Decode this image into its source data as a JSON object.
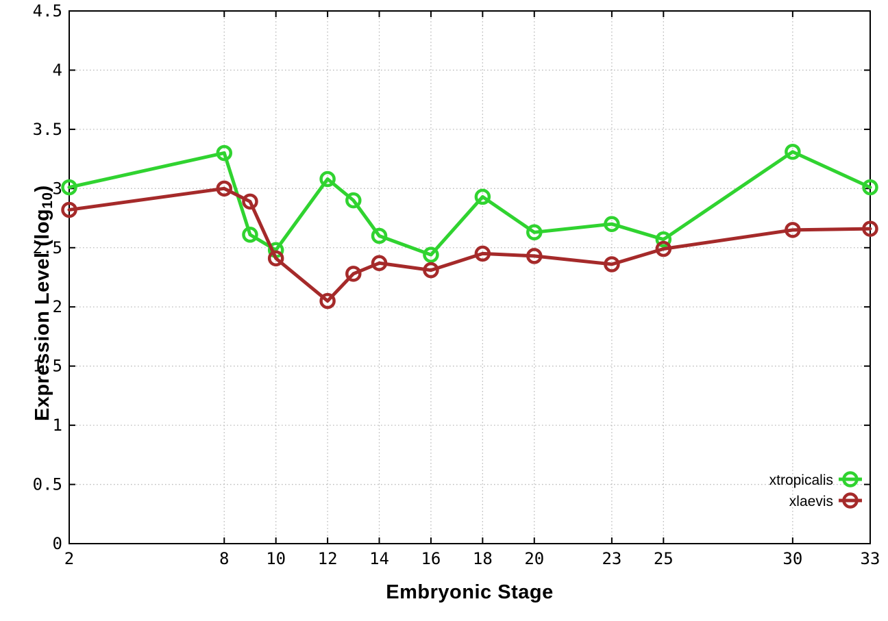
{
  "chart_data": {
    "type": "line",
    "title": "",
    "xlabel": "Embryonic Stage",
    "ylabel": "Expression Level (log10)",
    "ylabel_parts": {
      "prefix": "Expression Level (log",
      "sub": "10",
      "suffix": ")"
    },
    "x": [
      2,
      8,
      9,
      10,
      12,
      13,
      14,
      16,
      18,
      20,
      23,
      25,
      30,
      33
    ],
    "xlim": [
      2,
      33
    ],
    "ylim": [
      0,
      4.5
    ],
    "xtick_values": [
      2,
      8,
      10,
      12,
      14,
      16,
      18,
      20,
      23,
      25,
      30,
      33
    ],
    "xtick_labels": [
      "2",
      "8",
      "10",
      "12",
      "14",
      "16",
      "18",
      "20",
      "23",
      "25",
      "30",
      "33"
    ],
    "ytick_values": [
      0,
      0.5,
      1,
      1.5,
      2,
      2.5,
      3,
      3.5,
      4,
      4.5
    ],
    "ytick_labels": [
      "0",
      "0.5",
      "1",
      "1.5",
      "2",
      "2.5",
      "3",
      "3.5",
      "4",
      "4.5"
    ],
    "grid": true,
    "legend_position": "bottom-right",
    "series": [
      {
        "name": "xtropicalis",
        "color": "#30d330",
        "values": [
          3.01,
          3.3,
          2.61,
          2.48,
          3.08,
          2.9,
          2.6,
          2.44,
          2.93,
          2.63,
          2.7,
          2.57,
          3.31,
          3.01
        ]
      },
      {
        "name": "xlaevis",
        "color": "#a52a2a",
        "values": [
          2.82,
          3.0,
          2.89,
          2.41,
          2.05,
          2.28,
          2.37,
          2.31,
          2.45,
          2.43,
          2.36,
          2.49,
          2.65,
          2.66
        ]
      }
    ],
    "colors": {
      "grid": "#bcbcbc",
      "axis": "#000000",
      "background": "#ffffff"
    }
  }
}
